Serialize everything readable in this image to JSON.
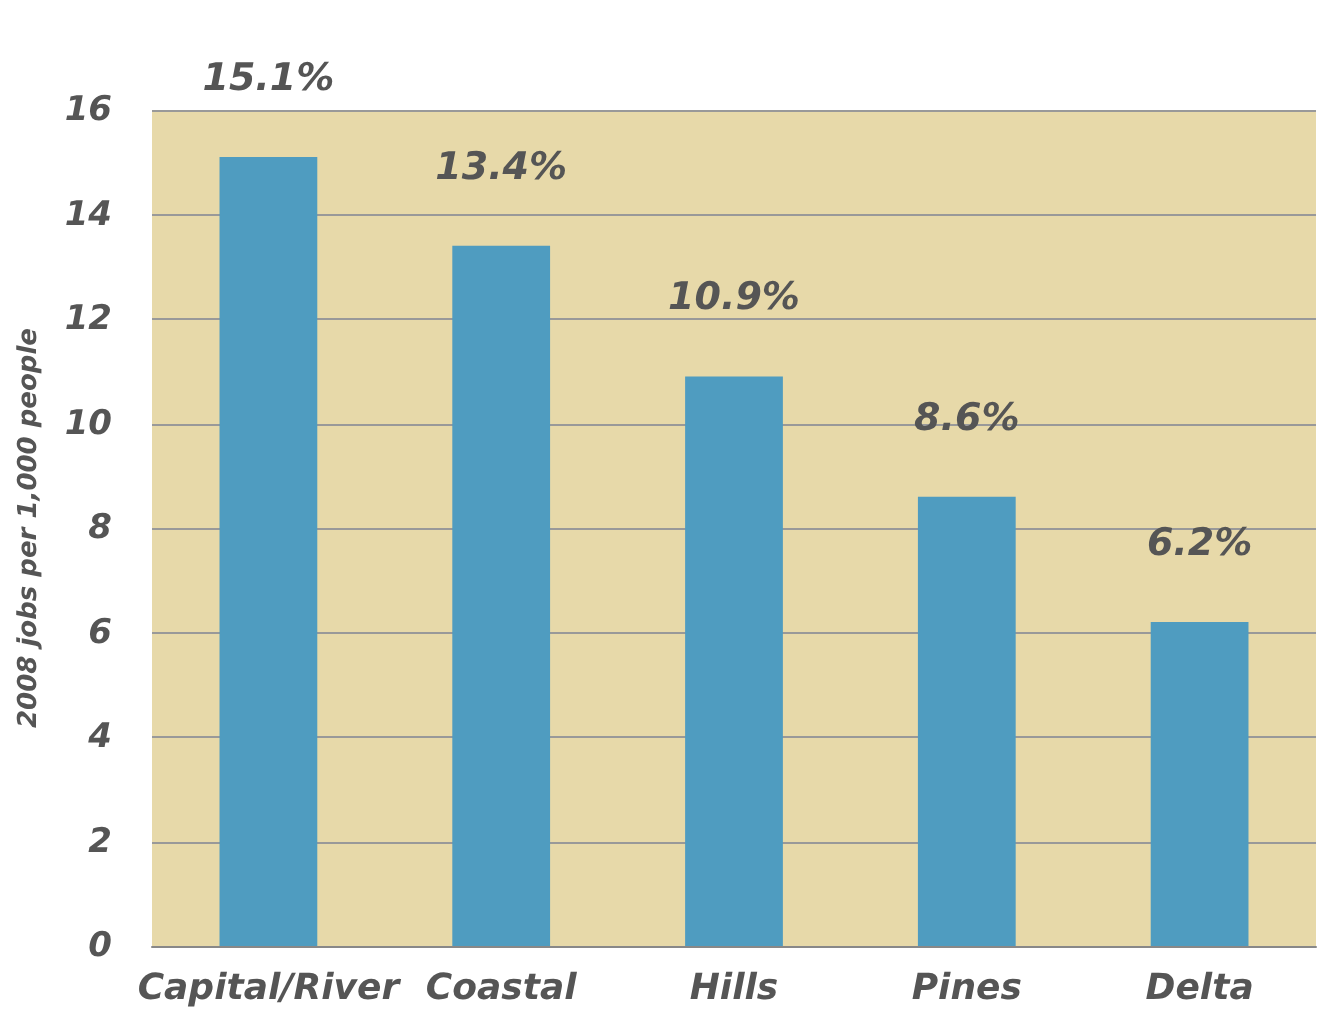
{
  "chart_data": {
    "type": "bar",
    "ylabel": "2008 jobs per 1,000 people",
    "categories": [
      "Capital/River",
      "Coastal",
      "Hills",
      "Pines",
      "Delta"
    ],
    "values": [
      15.1,
      13.4,
      10.9,
      8.6,
      6.2
    ],
    "value_labels": [
      "15.1%",
      "13.4%",
      "10.9%",
      "8.6%",
      "6.2%"
    ],
    "color": "#4f9cc0",
    "ylim": [
      0,
      16
    ],
    "yticks": [
      0,
      2,
      4,
      6,
      8,
      10,
      12,
      14,
      16
    ],
    "grid": "y"
  }
}
